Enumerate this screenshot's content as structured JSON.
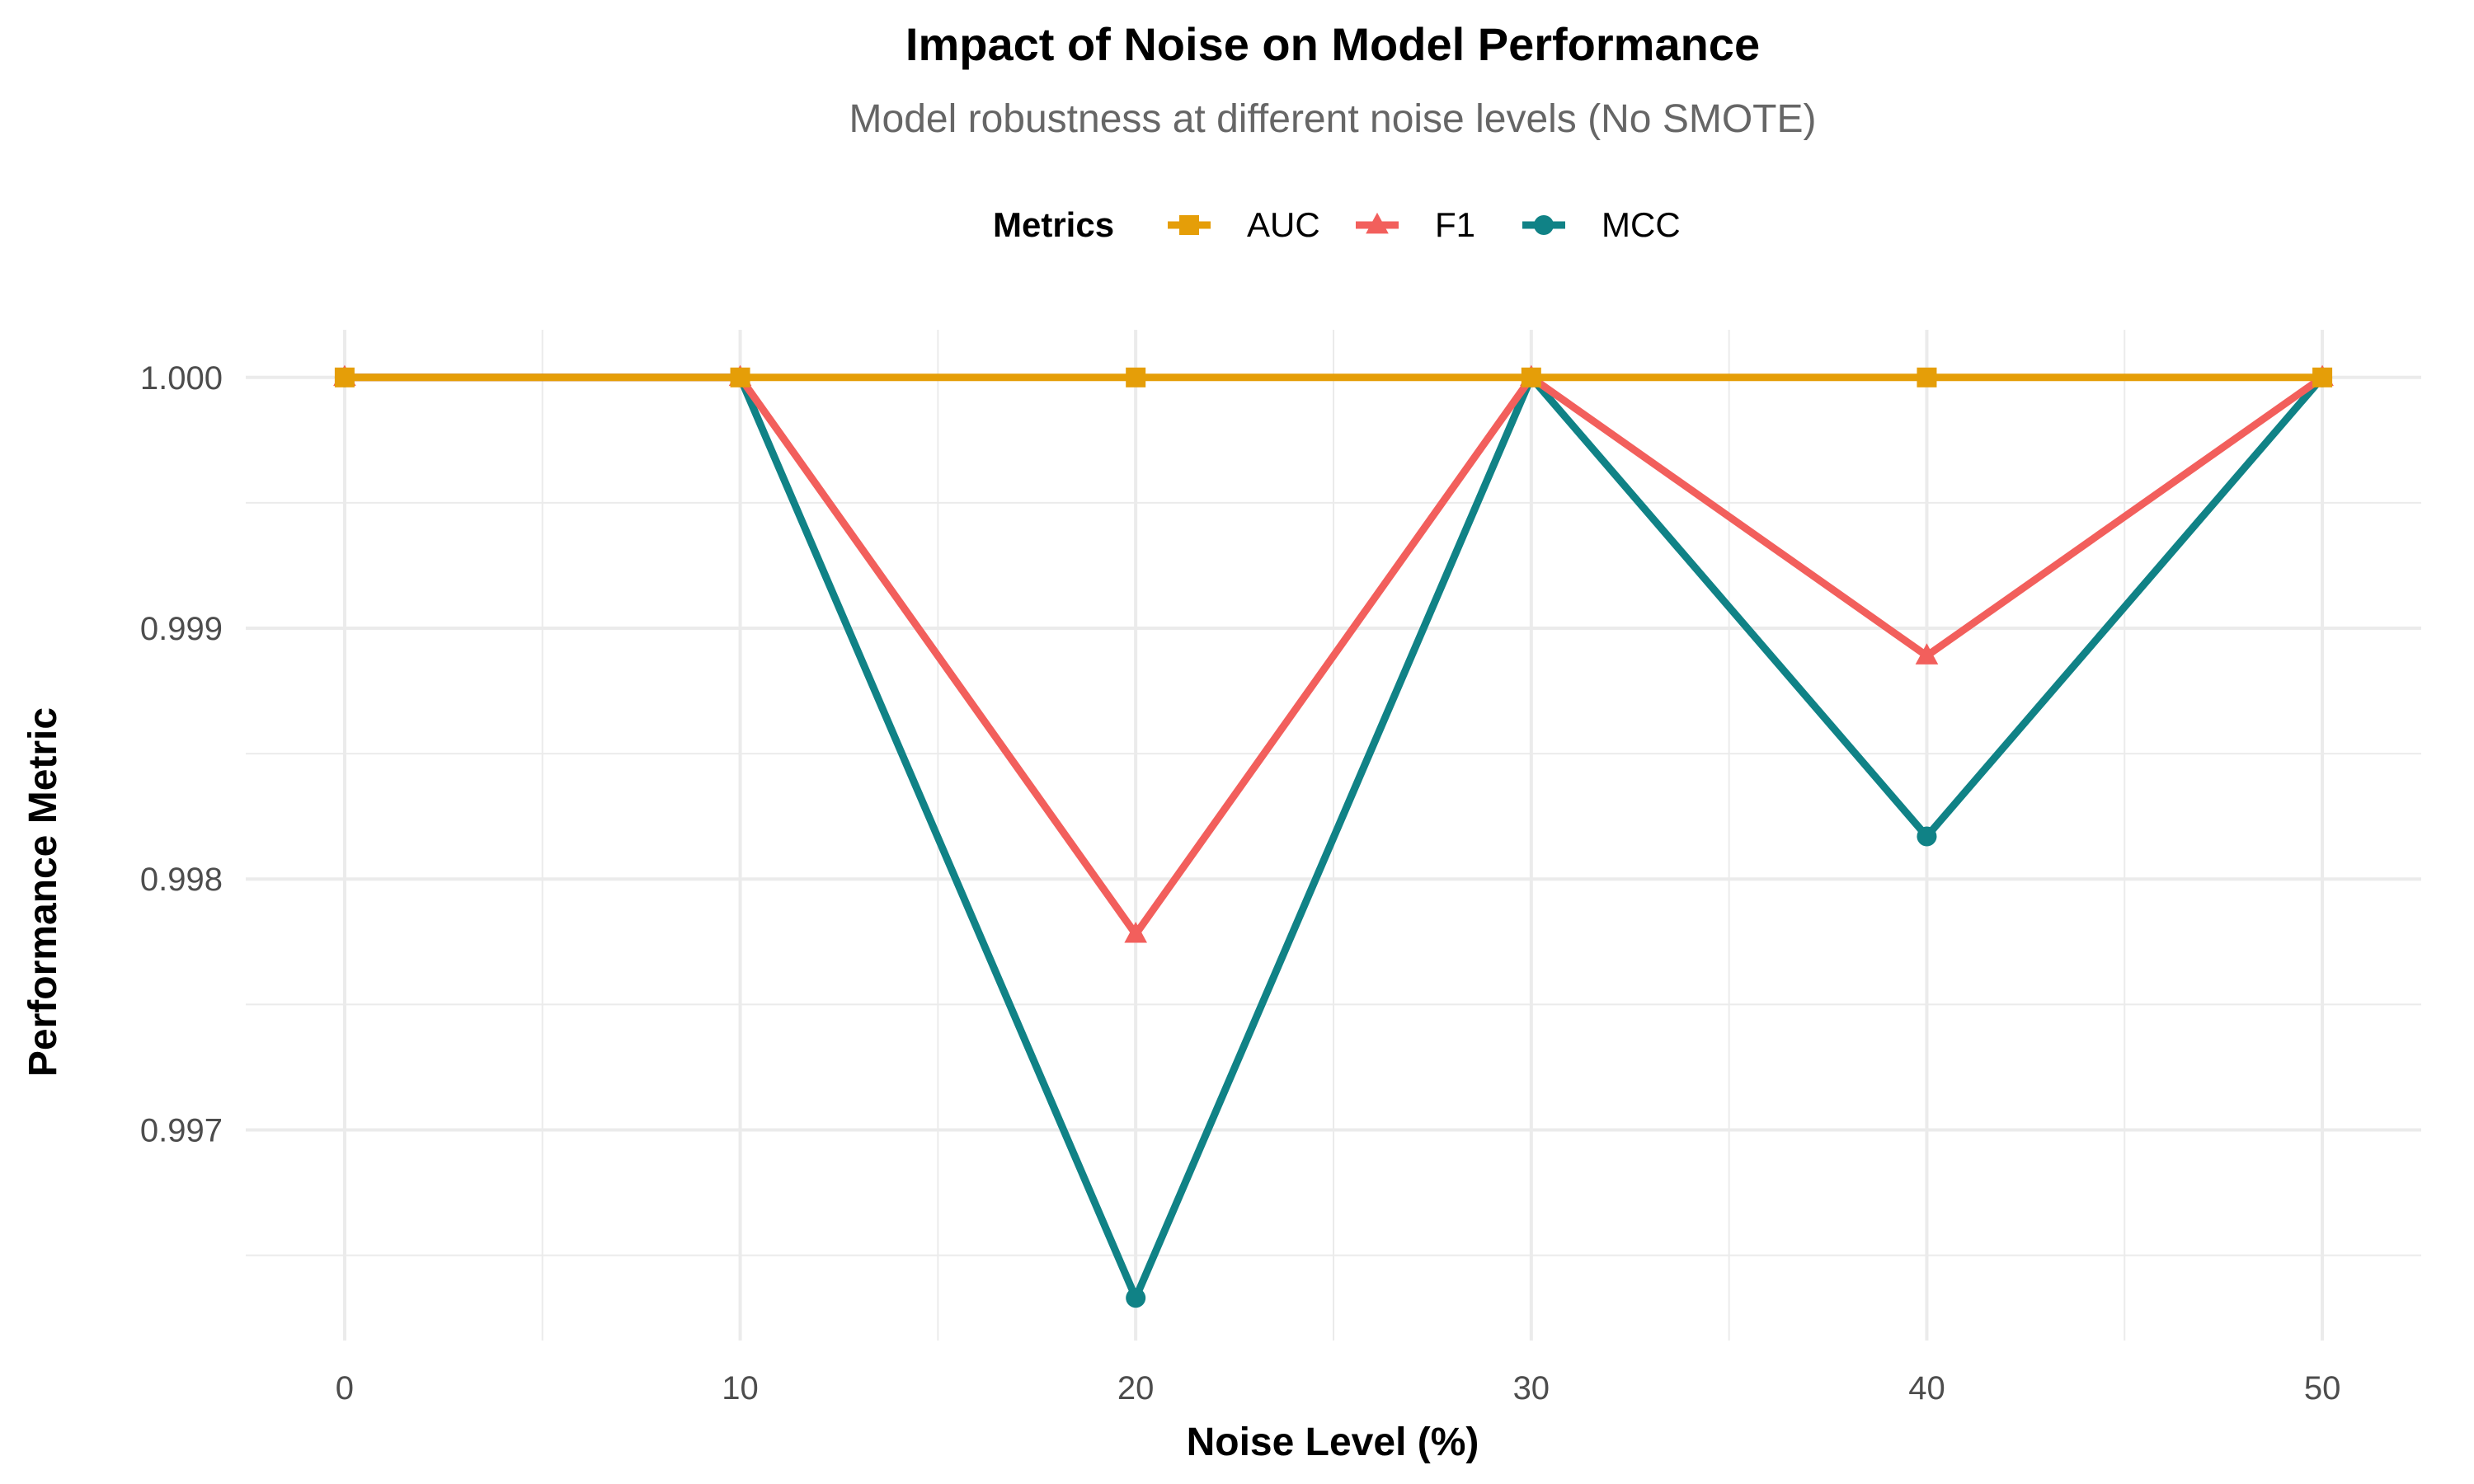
{
  "chart_data": {
    "type": "line",
    "title": "Impact of Noise on Model Performance",
    "subtitle": "Model robustness at different noise levels (No SMOTE)",
    "xlabel": "Noise Level (%)",
    "ylabel": "Performance Metric",
    "x": [
      0,
      10,
      20,
      30,
      40,
      50
    ],
    "x_ticks": [
      0,
      10,
      20,
      30,
      40,
      50
    ],
    "x_tick_labels": [
      "0",
      "10",
      "20",
      "30",
      "40",
      "50"
    ],
    "xlim": [
      -2.5,
      52.5
    ],
    "y_ticks": [
      0.997,
      0.998,
      0.999,
      1.0
    ],
    "y_tick_labels": [
      "0.997",
      "0.998",
      "0.999",
      "1.000"
    ],
    "ylim": [
      0.99616,
      1.00019
    ],
    "grid": true,
    "legend": {
      "title": "Metrics",
      "placement": "top",
      "entries": [
        "AUC",
        "F1",
        "MCC"
      ]
    },
    "series": [
      {
        "name": "MCC",
        "color": "#108286",
        "marker": "circle",
        "values": [
          1.0,
          1.0,
          0.99633,
          1.0,
          0.99817,
          1.0
        ]
      },
      {
        "name": "F1",
        "color": "#F25F5C",
        "marker": "triangle",
        "values": [
          1.0,
          1.0,
          0.99778,
          1.0,
          0.99889,
          1.0
        ]
      },
      {
        "name": "AUC",
        "color": "#E59E08",
        "marker": "square",
        "values": [
          1.0,
          1.0,
          1.0,
          1.0,
          1.0,
          1.0
        ]
      }
    ]
  }
}
